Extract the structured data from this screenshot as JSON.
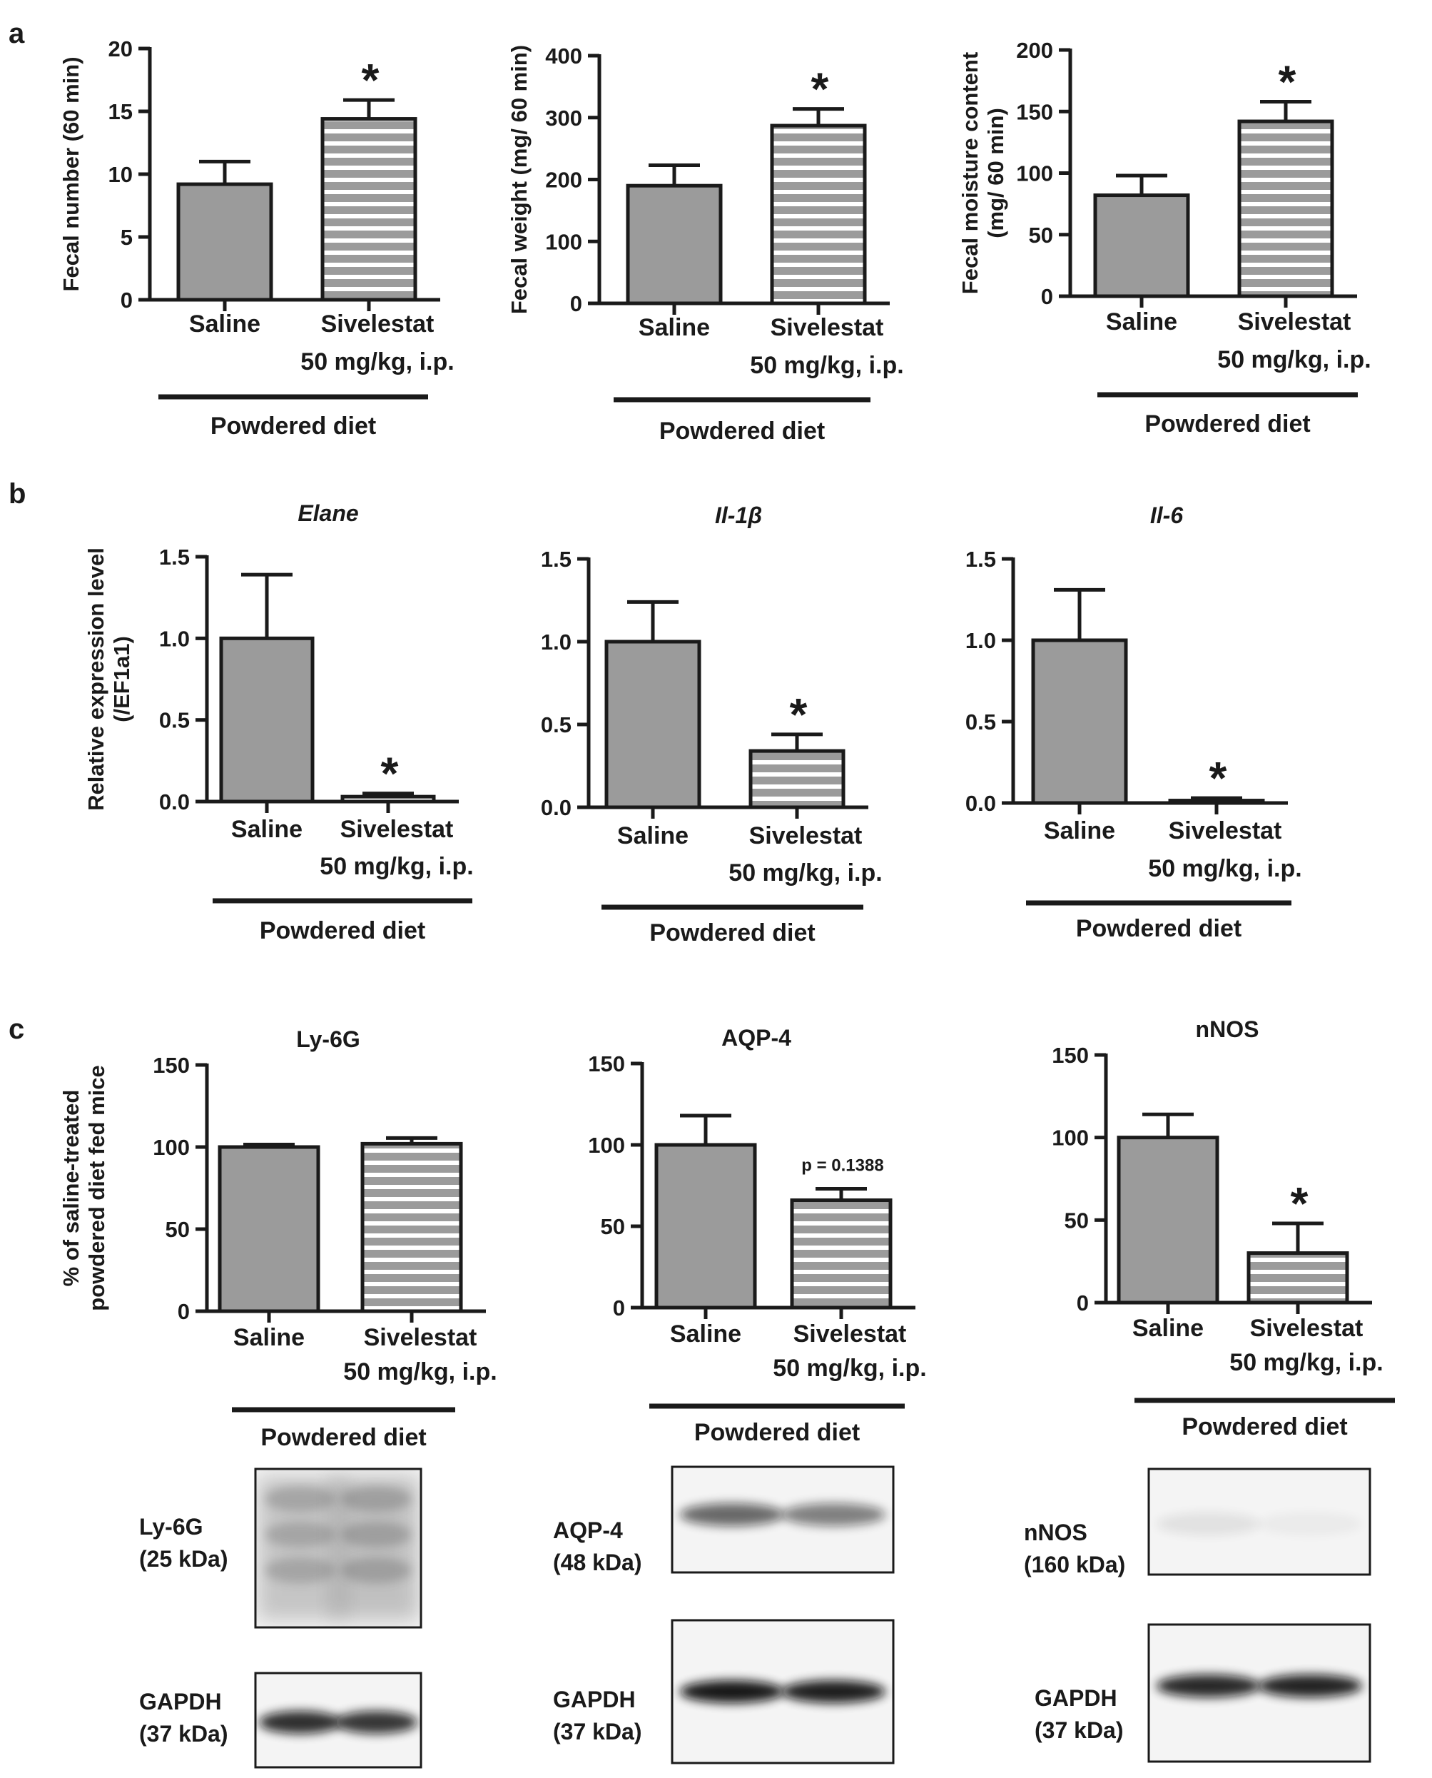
{
  "panel_labels": [
    "a",
    "b",
    "c"
  ],
  "chart_data": [
    {
      "id": "a1",
      "type": "bar",
      "title": "",
      "ylabel": "Fecal number (60 min)",
      "ylim": [
        0,
        20
      ],
      "yticks": [
        "0",
        "5",
        "10",
        "15",
        "20"
      ],
      "categories": [
        "Saline",
        "Sivelestat"
      ],
      "category_sub": [
        "",
        "50 mg/kg, i.p."
      ],
      "values": [
        9.2,
        14.4
      ],
      "errors": [
        1.8,
        1.5
      ],
      "significance": [
        "",
        "*"
      ],
      "annotation": "",
      "group_label": "Powdered diet",
      "patterns": [
        "solid",
        "striped"
      ]
    },
    {
      "id": "a2",
      "type": "bar",
      "title": "",
      "ylabel": "Fecal weight (mg/ 60 min)",
      "ylim": [
        0,
        400
      ],
      "yticks": [
        "0",
        "100",
        "200",
        "300",
        "400"
      ],
      "categories": [
        "Saline",
        "Sivelestat"
      ],
      "category_sub": [
        "",
        "50 mg/kg, i.p."
      ],
      "values": [
        190,
        287
      ],
      "errors": [
        33,
        27
      ],
      "significance": [
        "",
        "*"
      ],
      "annotation": "",
      "group_label": "Powdered diet",
      "patterns": [
        "solid",
        "striped"
      ]
    },
    {
      "id": "a3",
      "type": "bar",
      "title": "",
      "ylabel": [
        "Fecal moisture content",
        "(mg/ 60 min)"
      ],
      "ylim": [
        0,
        200
      ],
      "yticks": [
        "0",
        "50",
        "100",
        "150",
        "200"
      ],
      "categories": [
        "Saline",
        "Sivelestat"
      ],
      "category_sub": [
        "",
        "50 mg/kg, i.p."
      ],
      "values": [
        82,
        142
      ],
      "errors": [
        16,
        16
      ],
      "significance": [
        "",
        "*"
      ],
      "annotation": "",
      "group_label": "Powdered diet",
      "patterns": [
        "solid",
        "striped"
      ]
    },
    {
      "id": "b1",
      "type": "bar",
      "title": "Elane",
      "title_italic": true,
      "ylabel": [
        "Relative expression level",
        "(/EF1a1)"
      ],
      "ylim": [
        0,
        1.5
      ],
      "yticks": [
        "0.0",
        "0.5",
        "1.0",
        "1.5"
      ],
      "categories": [
        "Saline",
        "Sivelestat"
      ],
      "category_sub": [
        "",
        "50 mg/kg, i.p."
      ],
      "values": [
        1.0,
        0.03
      ],
      "errors": [
        0.39,
        0.02
      ],
      "significance": [
        "",
        "*"
      ],
      "annotation": "",
      "group_label": "Powdered diet",
      "patterns": [
        "solid",
        "striped"
      ]
    },
    {
      "id": "b2",
      "type": "bar",
      "title": "Il-1β",
      "title_italic": true,
      "ylabel": "",
      "ylim": [
        0,
        1.5
      ],
      "yticks": [
        "0.0",
        "0.5",
        "1.0",
        "1.5"
      ],
      "categories": [
        "Saline",
        "Sivelestat"
      ],
      "category_sub": [
        "",
        "50 mg/kg, i.p."
      ],
      "values": [
        1.0,
        0.34
      ],
      "errors": [
        0.24,
        0.1
      ],
      "significance": [
        "",
        "*"
      ],
      "annotation": "",
      "group_label": "Powdered diet",
      "patterns": [
        "solid",
        "striped"
      ]
    },
    {
      "id": "b3",
      "type": "bar",
      "title": "Il-6",
      "title_italic": true,
      "ylabel": "",
      "ylim": [
        0,
        1.5
      ],
      "yticks": [
        "0.0",
        "0.5",
        "1.0",
        "1.5"
      ],
      "categories": [
        "Saline",
        "Sivelestat"
      ],
      "category_sub": [
        "",
        "50 mg/kg, i.p."
      ],
      "values": [
        1.0,
        0.015
      ],
      "errors": [
        0.31,
        0.015
      ],
      "significance": [
        "",
        "*"
      ],
      "annotation": "",
      "group_label": "Powdered diet",
      "patterns": [
        "solid",
        "striped"
      ]
    },
    {
      "id": "c1",
      "type": "bar",
      "title": "Ly-6G",
      "title_italic": false,
      "ylabel": [
        "% of saline-treated",
        "powdered diet fed mice"
      ],
      "ylim": [
        0,
        150
      ],
      "yticks": [
        "0",
        "50",
        "100",
        "150"
      ],
      "categories": [
        "Saline",
        "Sivelestat"
      ],
      "category_sub": [
        "",
        "50 mg/kg, i.p."
      ],
      "values": [
        100,
        102
      ],
      "errors": [
        1.5,
        3.5
      ],
      "significance": [
        "",
        ""
      ],
      "annotation": "",
      "group_label": "Powdered diet",
      "patterns": [
        "solid",
        "striped"
      ]
    },
    {
      "id": "c2",
      "type": "bar",
      "title": "AQP-4",
      "title_italic": false,
      "ylabel": "",
      "ylim": [
        0,
        150
      ],
      "yticks": [
        "0",
        "50",
        "100",
        "150"
      ],
      "categories": [
        "Saline",
        "Sivelestat"
      ],
      "category_sub": [
        "",
        "50 mg/kg, i.p."
      ],
      "values": [
        100,
        66
      ],
      "errors": [
        18,
        7
      ],
      "significance": [
        "",
        ""
      ],
      "annotation": "p = 0.1388",
      "group_label": "Powdered diet",
      "patterns": [
        "solid",
        "striped"
      ]
    },
    {
      "id": "c3",
      "type": "bar",
      "title": "nNOS",
      "title_italic": false,
      "ylabel": "",
      "ylim": [
        0,
        150
      ],
      "yticks": [
        "0",
        "50",
        "100",
        "150"
      ],
      "categories": [
        "Saline",
        "Sivelestat"
      ],
      "category_sub": [
        "",
        "50 mg/kg, i.p."
      ],
      "values": [
        100,
        30
      ],
      "errors": [
        14,
        18
      ],
      "significance": [
        "",
        "*"
      ],
      "annotation": "",
      "group_label": "Powdered diet",
      "patterns": [
        "solid",
        "striped"
      ]
    }
  ],
  "blots": [
    {
      "id": "ly6g",
      "label": [
        "Ly-6G",
        "(25 kDa)"
      ],
      "intensity": [
        0.3,
        0.33
      ],
      "style": "smear"
    },
    {
      "id": "gapdh1",
      "label": [
        "GAPDH",
        "(37 kDa)"
      ],
      "intensity": [
        0.85,
        0.82
      ],
      "style": "band"
    },
    {
      "id": "aqp4",
      "label": [
        "AQP-4",
        "(48 kDa)"
      ],
      "intensity": [
        0.6,
        0.5
      ],
      "style": "band"
    },
    {
      "id": "gapdh2",
      "label": [
        "GAPDH",
        "(37 kDa)"
      ],
      "intensity": [
        0.95,
        0.92
      ],
      "style": "band"
    },
    {
      "id": "nnos",
      "label": [
        "nNOS",
        "(160 kDa)"
      ],
      "intensity": [
        0.08,
        0.04
      ],
      "style": "band"
    },
    {
      "id": "gapdh3",
      "label": [
        "GAPDH",
        "(37 kDa)"
      ],
      "intensity": [
        0.88,
        0.9
      ],
      "style": "band"
    }
  ],
  "colors": {
    "bar_fill": "#9b9b9b",
    "stripe": "#ffffff",
    "axis": "#1a1a1a",
    "text": "#1a1a1a",
    "blot_bg": "#f4f4f4"
  }
}
